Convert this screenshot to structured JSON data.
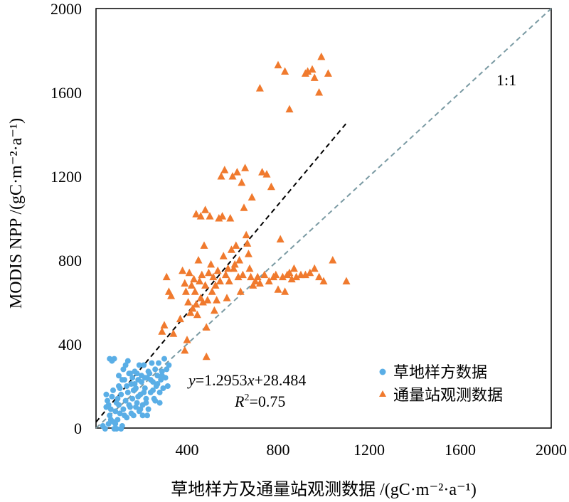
{
  "chart_data": {
    "type": "scatter",
    "xlabel": "草地样方及通量站观测数据 /(gC·m⁻²·a⁻¹)",
    "ylabel": "MODIS NPP /(gC·m⁻²·a⁻¹)",
    "xlim": [
      0,
      2000
    ],
    "ylim": [
      0,
      2000
    ],
    "x_ticks": [
      "400",
      "800",
      "1200",
      "1600",
      "2000"
    ],
    "y_ticks": [
      "0",
      "400",
      "800",
      "1200",
      "1600",
      "2000"
    ],
    "grid": false,
    "legend_position": "bottom-right",
    "colors": {
      "grass": "#5aaee6",
      "flux": "#f07a2e",
      "fit_line": "#000000",
      "one_to_one": "#7a9aa3"
    },
    "fit_line": {
      "slope": 1.2953,
      "intercept": 28.484,
      "x_range": [
        0,
        1100
      ]
    },
    "one_to_one_label": "1:1",
    "equation": {
      "y": "y",
      "eq": "=1.2953",
      "x": "x",
      "rest": "+28.484"
    },
    "r2": {
      "R": "R",
      "sup": "2",
      "rest": "=0.75"
    },
    "series": [
      {
        "name": "草地样方数据",
        "marker": "circle",
        "points": [
          [
            30,
            10
          ],
          [
            40,
            -5
          ],
          [
            45,
            100
          ],
          [
            50,
            130
          ],
          [
            55,
            20
          ],
          [
            60,
            60
          ],
          [
            65,
            90
          ],
          [
            70,
            150
          ],
          [
            75,
            30
          ],
          [
            80,
            -10
          ],
          [
            85,
            80
          ],
          [
            90,
            120
          ],
          [
            95,
            40
          ],
          [
            100,
            110
          ],
          [
            100,
            200
          ],
          [
            105,
            70
          ],
          [
            110,
            160
          ],
          [
            115,
            10
          ],
          [
            120,
            90
          ],
          [
            125,
            230
          ],
          [
            130,
            130
          ],
          [
            135,
            50
          ],
          [
            140,
            170
          ],
          [
            145,
            260
          ],
          [
            150,
            100
          ],
          [
            155,
            210
          ],
          [
            160,
            140
          ],
          [
            165,
            60
          ],
          [
            170,
            270
          ],
          [
            175,
            190
          ],
          [
            180,
            120
          ],
          [
            185,
            230
          ],
          [
            190,
            80
          ],
          [
            195,
            160
          ],
          [
            200,
            250
          ],
          [
            205,
            110
          ],
          [
            210,
            300
          ],
          [
            215,
            190
          ],
          [
            220,
            140
          ],
          [
            225,
            240
          ],
          [
            230,
            90
          ],
          [
            235,
            260
          ],
          [
            240,
            170
          ],
          [
            245,
            310
          ],
          [
            250,
            220
          ],
          [
            255,
            140
          ],
          [
            260,
            280
          ],
          [
            265,
            200
          ],
          [
            270,
            250
          ],
          [
            275,
            310
          ],
          [
            280,
            120
          ],
          [
            285,
            230
          ],
          [
            290,
            270
          ],
          [
            295,
            190
          ],
          [
            300,
            330
          ],
          [
            305,
            240
          ],
          [
            310,
            280
          ],
          [
            315,
            200
          ],
          [
            320,
            300
          ],
          [
            60,
            330
          ],
          [
            70,
            320
          ],
          [
            80,
            330
          ],
          [
            90,
            -15
          ],
          [
            110,
            -5
          ],
          [
            100,
            250
          ],
          [
            120,
            280
          ],
          [
            130,
            300
          ],
          [
            140,
            320
          ],
          [
            150,
            260
          ],
          [
            160,
            240
          ],
          [
            170,
            210
          ],
          [
            180,
            260
          ],
          [
            190,
            300
          ],
          [
            200,
            220
          ],
          [
            210,
            170
          ],
          [
            220,
            120
          ],
          [
            230,
            270
          ],
          [
            240,
            230
          ],
          [
            250,
            180
          ],
          [
            260,
            130
          ],
          [
            270,
            210
          ],
          [
            280,
            170
          ],
          [
            290,
            250
          ],
          [
            45,
            160
          ],
          [
            55,
            110
          ],
          [
            65,
            40
          ],
          [
            75,
            180
          ],
          [
            85,
            20
          ],
          [
            95,
            140
          ],
          [
            105,
            190
          ],
          [
            115,
            230
          ],
          [
            125,
            60
          ],
          [
            135,
            200
          ],
          [
            145,
            110
          ],
          [
            155,
            70
          ],
          [
            165,
            180
          ],
          [
            175,
            100
          ],
          [
            185,
            150
          ],
          [
            195,
            90
          ],
          [
            205,
            60
          ],
          [
            215,
            240
          ],
          [
            225,
            60
          ]
        ]
      },
      {
        "name": "通量站观测数据",
        "marker": "triangle",
        "points": [
          [
            290,
            460
          ],
          [
            300,
            490
          ],
          [
            310,
            720
          ],
          [
            320,
            650
          ],
          [
            330,
            630
          ],
          [
            340,
            450
          ],
          [
            370,
            520
          ],
          [
            380,
            750
          ],
          [
            390,
            690
          ],
          [
            390,
            370
          ],
          [
            395,
            650
          ],
          [
            400,
            420
          ],
          [
            405,
            600
          ],
          [
            410,
            740
          ],
          [
            415,
            550
          ],
          [
            420,
            680
          ],
          [
            425,
            570
          ],
          [
            430,
            710
          ],
          [
            435,
            650
          ],
          [
            440,
            590
          ],
          [
            440,
            1020
          ],
          [
            445,
            540
          ],
          [
            450,
            800
          ],
          [
            455,
            700
          ],
          [
            460,
            620
          ],
          [
            460,
            1010
          ],
          [
            465,
            730
          ],
          [
            470,
            600
          ],
          [
            475,
            870
          ],
          [
            480,
            680
          ],
          [
            480,
            1040
          ],
          [
            485,
            480
          ],
          [
            485,
            340
          ],
          [
            490,
            610
          ],
          [
            495,
            740
          ],
          [
            500,
            1010
          ],
          [
            505,
            780
          ],
          [
            510,
            650
          ],
          [
            515,
            720
          ],
          [
            520,
            560
          ],
          [
            525,
            680
          ],
          [
            530,
            610
          ],
          [
            535,
            750
          ],
          [
            540,
            1000
          ],
          [
            545,
            700
          ],
          [
            550,
            1200
          ],
          [
            555,
            1010
          ],
          [
            560,
            820
          ],
          [
            565,
            1230
          ],
          [
            570,
            730
          ],
          [
            575,
            620
          ],
          [
            580,
            760
          ],
          [
            585,
            700
          ],
          [
            590,
            1000
          ],
          [
            595,
            850
          ],
          [
            600,
            1200
          ],
          [
            605,
            760
          ],
          [
            610,
            780
          ],
          [
            615,
            870
          ],
          [
            620,
            1220
          ],
          [
            625,
            720
          ],
          [
            630,
            800
          ],
          [
            635,
            650
          ],
          [
            640,
            1170
          ],
          [
            645,
            730
          ],
          [
            650,
            1050
          ],
          [
            655,
            1240
          ],
          [
            660,
            920
          ],
          [
            665,
            880
          ],
          [
            670,
            830
          ],
          [
            675,
            760
          ],
          [
            680,
            720
          ],
          [
            685,
            1100
          ],
          [
            690,
            680
          ],
          [
            700,
            700
          ],
          [
            710,
            720
          ],
          [
            720,
            690
          ],
          [
            730,
            1220
          ],
          [
            740,
            730
          ],
          [
            750,
            1210
          ],
          [
            760,
            700
          ],
          [
            770,
            1150
          ],
          [
            780,
            720
          ],
          [
            790,
            730
          ],
          [
            800,
            660
          ],
          [
            810,
            900
          ],
          [
            820,
            720
          ],
          [
            830,
            650
          ],
          [
            840,
            730
          ],
          [
            850,
            740
          ],
          [
            860,
            710
          ],
          [
            870,
            760
          ],
          [
            880,
            720
          ],
          [
            900,
            730
          ],
          [
            920,
            730
          ],
          [
            940,
            740
          ],
          [
            960,
            760
          ],
          [
            980,
            720
          ],
          [
            1000,
            700
          ],
          [
            1040,
            800
          ],
          [
            1100,
            700
          ],
          [
            720,
            1620
          ],
          [
            800,
            1730
          ],
          [
            830,
            1700
          ],
          [
            850,
            1520
          ],
          [
            920,
            1690
          ],
          [
            930,
            1700
          ],
          [
            950,
            1710
          ],
          [
            960,
            1670
          ],
          [
            980,
            1600
          ],
          [
            990,
            1770
          ],
          [
            1020,
            1690
          ]
        ]
      }
    ]
  }
}
